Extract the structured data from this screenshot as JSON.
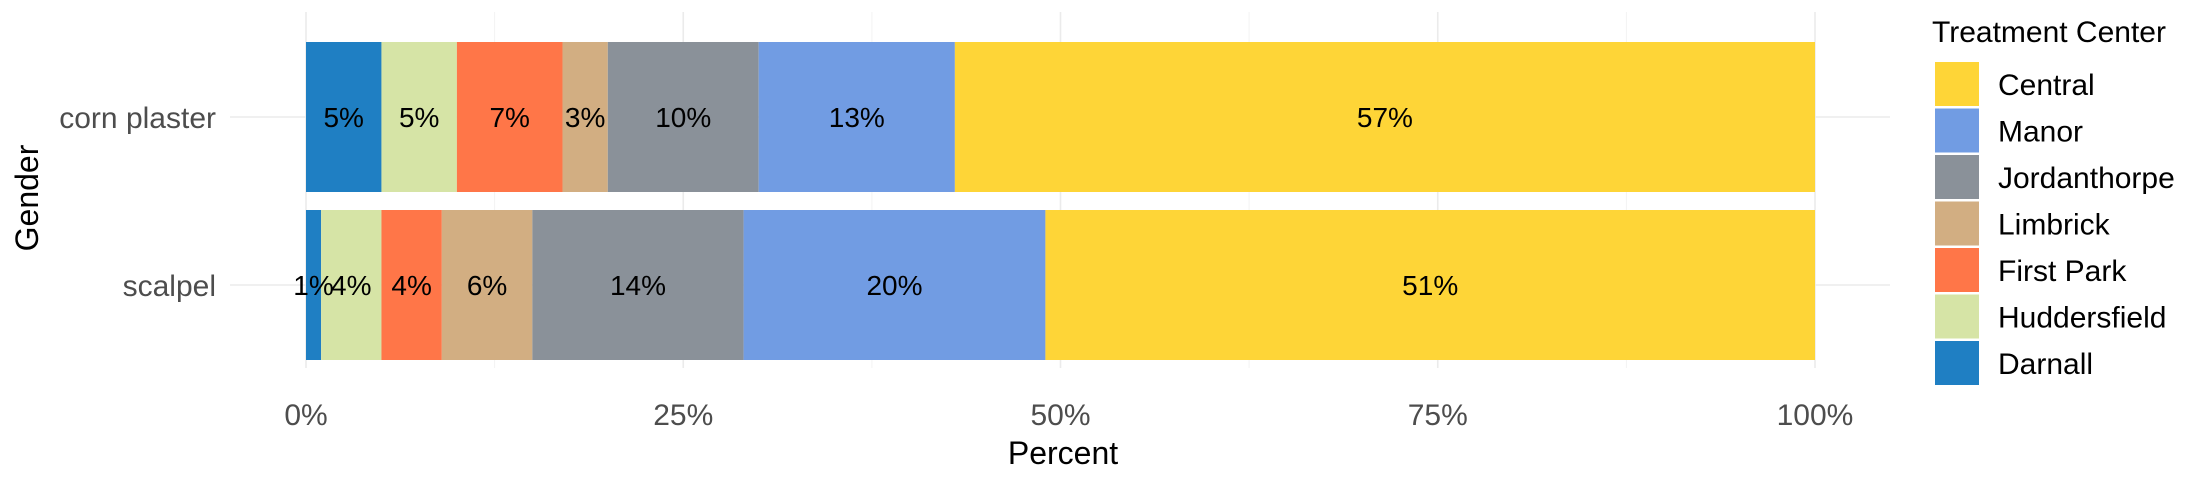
{
  "chart_data": {
    "type": "bar",
    "orientation": "horizontal",
    "stacked": true,
    "title": "",
    "xlabel": "Percent",
    "ylabel": "Gender",
    "xlim": [
      0,
      1
    ],
    "x_ticks": [
      0,
      0.25,
      0.5,
      0.75,
      1
    ],
    "x_tick_labels": [
      "0%",
      "25%",
      "50%",
      "75%",
      "100%"
    ],
    "categories": [
      "corn plaster",
      "scalpel"
    ],
    "series": [
      {
        "name": "Darnall",
        "color": "#1f7fc3",
        "values": [
          0.05,
          0.01
        ],
        "labels": [
          "5%",
          "1%"
        ]
      },
      {
        "name": "Huddersfield",
        "color": "#d6e4a6",
        "values": [
          0.05,
          0.04
        ],
        "labels": [
          "5%",
          "4%"
        ]
      },
      {
        "name": "First Park",
        "color": "#ff7648",
        "values": [
          0.07,
          0.04
        ],
        "labels": [
          "7%",
          "4%"
        ]
      },
      {
        "name": "Limbrick",
        "color": "#d2ae82",
        "values": [
          0.03,
          0.06
        ],
        "labels": [
          "3%",
          "6%"
        ]
      },
      {
        "name": "Jordanthorpe",
        "color": "#8a9199",
        "values": [
          0.1,
          0.14
        ],
        "labels": [
          "10%",
          "14%"
        ]
      },
      {
        "name": "Manor",
        "color": "#719ce3",
        "values": [
          0.13,
          0.2
        ],
        "labels": [
          "13%",
          "20%"
        ]
      },
      {
        "name": "Central",
        "color": "#fed537",
        "values": [
          0.57,
          0.51
        ],
        "labels": [
          "57%",
          "51%"
        ]
      }
    ],
    "legend": {
      "title": "Treatment Center",
      "position": "right",
      "order": [
        "Central",
        "Manor",
        "Jordanthorpe",
        "Limbrick",
        "First Park",
        "Huddersfield",
        "Darnall"
      ]
    },
    "grid": true
  }
}
